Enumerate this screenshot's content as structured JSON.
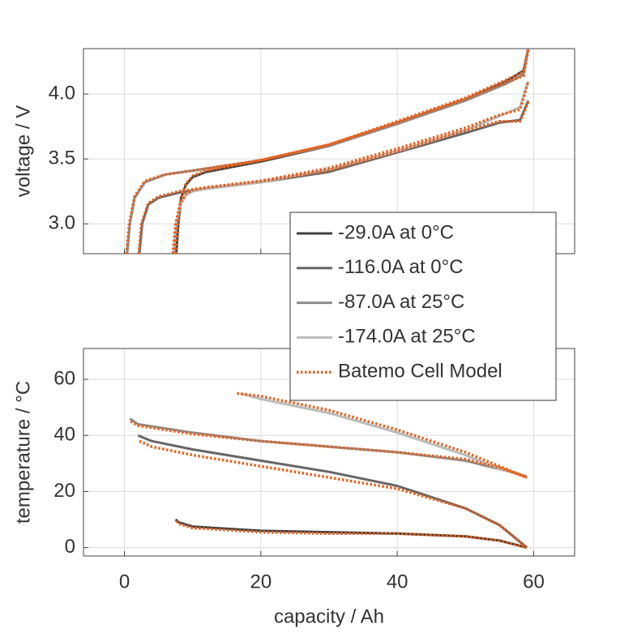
{
  "chart_data": [
    {
      "type": "line",
      "ylabel": "voltage / V",
      "xlim": [
        -6,
        66
      ],
      "ylim": [
        2.77,
        4.35
      ],
      "xticks": [
        0,
        20,
        40,
        60
      ],
      "yticks": [
        {
          "value": 3,
          "label": "3.0"
        },
        3.5,
        {
          "value": 4,
          "label": "4.0"
        }
      ],
      "grid": true,
      "series": [
        {
          "name": "-29.0A at 0°C",
          "color": "#404040",
          "style": "solid",
          "x": [
            7.6,
            7.9,
            8.3,
            9,
            10,
            12,
            20,
            30,
            40,
            50,
            56,
            58.5,
            59.2
          ],
          "values": [
            2.77,
            3.0,
            3.2,
            3.3,
            3.36,
            3.4,
            3.48,
            3.6,
            3.78,
            3.96,
            4.1,
            4.18,
            4.35
          ]
        },
        {
          "name": "-116.0A at 0°C",
          "color": "#666666",
          "style": "solid",
          "x": [
            2.2,
            2.6,
            3.5,
            5,
            8,
            12,
            20,
            30,
            40,
            50,
            55,
            58,
            59.2
          ],
          "values": [
            2.77,
            3.0,
            3.15,
            3.2,
            3.24,
            3.27,
            3.32,
            3.4,
            3.55,
            3.7,
            3.78,
            3.8,
            3.95
          ]
        },
        {
          "name": "-87.0A at 25°C",
          "color": "#8c8c8c",
          "style": "solid",
          "x": [
            0.4,
            0.8,
            1.5,
            3,
            6,
            10,
            20,
            30,
            40,
            50,
            56,
            58.5,
            59.2
          ],
          "values": [
            2.77,
            3.0,
            3.2,
            3.32,
            3.38,
            3.41,
            3.49,
            3.6,
            3.77,
            3.95,
            4.08,
            4.15,
            4.35
          ]
        },
        {
          "name": "-174.0A at 25°C",
          "color": "#bbbbbb",
          "style": "solid",
          "x": [
            7.2,
            7.6,
            8.2,
            9,
            10,
            12,
            20,
            30,
            40,
            50,
            55,
            58,
            59.2
          ],
          "values": [
            2.77,
            3.0,
            3.15,
            3.22,
            3.25,
            3.27,
            3.32,
            3.42,
            3.56,
            3.72,
            3.83,
            3.9,
            4.1
          ]
        },
        {
          "name": "Batemo Cell Model",
          "color": "#e8601c",
          "style": "dotted",
          "x": [
            7.5,
            7.8,
            8.3,
            9,
            10,
            12,
            20,
            30,
            40,
            50,
            56,
            58.5,
            59.2,
            null,
            2.1,
            2.5,
            3.5,
            5,
            8,
            12,
            20,
            30,
            40,
            50,
            55,
            58,
            59.2,
            null,
            0.3,
            0.7,
            1.5,
            3,
            6,
            10,
            20,
            30,
            40,
            50,
            56,
            58.5,
            59.2,
            null,
            7.1,
            7.5,
            8.2,
            9,
            10,
            12,
            20,
            30,
            40,
            50,
            55,
            58,
            59.2
          ],
          "values": [
            2.77,
            3.0,
            3.2,
            3.31,
            3.37,
            3.41,
            3.49,
            3.61,
            3.79,
            3.97,
            4.11,
            4.17,
            4.35,
            null,
            2.77,
            3.0,
            3.16,
            3.21,
            3.25,
            3.28,
            3.33,
            3.41,
            3.56,
            3.72,
            3.79,
            3.79,
            3.94,
            null,
            2.77,
            3.0,
            3.21,
            3.33,
            3.38,
            3.41,
            3.49,
            3.61,
            3.78,
            3.96,
            4.09,
            4.14,
            4.35,
            null,
            2.77,
            3.0,
            3.16,
            3.23,
            3.26,
            3.28,
            3.33,
            3.43,
            3.58,
            3.74,
            3.84,
            3.88,
            4.1
          ]
        }
      ]
    },
    {
      "type": "line",
      "xlabel": "capacity / Ah",
      "ylabel": "temperature / °C",
      "xlim": [
        -6,
        66
      ],
      "ylim": [
        -3,
        71
      ],
      "xticks": [
        0,
        20,
        40,
        60
      ],
      "yticks": [
        0,
        20,
        40,
        60
      ],
      "grid": true,
      "series": [
        {
          "color": "#404040",
          "style": "solid",
          "x": [
            7.5,
            8,
            10,
            20,
            30,
            40,
            50,
            55,
            59
          ],
          "values": [
            10,
            9,
            7.5,
            6,
            5.5,
            5,
            4,
            2.5,
            0
          ]
        },
        {
          "color": "#666666",
          "style": "solid",
          "x": [
            2,
            4,
            10,
            20,
            30,
            40,
            50,
            55,
            59
          ],
          "values": [
            40,
            38,
            35,
            31,
            27,
            22,
            14,
            8,
            0
          ]
        },
        {
          "color": "#8c8c8c",
          "style": "solid",
          "x": [
            0.8,
            2,
            10,
            20,
            30,
            40,
            50,
            55,
            59
          ],
          "values": [
            46,
            44,
            41,
            38,
            36,
            34,
            31,
            28,
            25.5
          ]
        },
        {
          "color": "#bbbbbb",
          "style": "solid",
          "x": [
            17,
            20,
            30,
            40,
            50,
            55,
            59
          ],
          "values": [
            55,
            53,
            48,
            41,
            33,
            28,
            25.5
          ]
        },
        {
          "color": "#e8601c",
          "style": "dotted",
          "x": [
            7.6,
            8,
            10,
            20,
            30,
            40,
            50,
            55,
            59,
            null,
            2.2,
            4,
            10,
            20,
            30,
            40,
            50,
            55,
            59,
            null,
            0.9,
            2,
            10,
            20,
            30,
            40,
            50,
            55,
            59,
            null,
            16.5,
            20,
            30,
            40,
            50,
            55,
            59
          ],
          "values": [
            9.5,
            8.5,
            7,
            5.5,
            5,
            5,
            4,
            2.5,
            0,
            null,
            38,
            36,
            33,
            29,
            25,
            21,
            14,
            8,
            0,
            null,
            45,
            43.5,
            40.5,
            38,
            36,
            34,
            31.5,
            28.5,
            25,
            null,
            55,
            54,
            49,
            42,
            34,
            29,
            25
          ]
        }
      ]
    }
  ]
}
